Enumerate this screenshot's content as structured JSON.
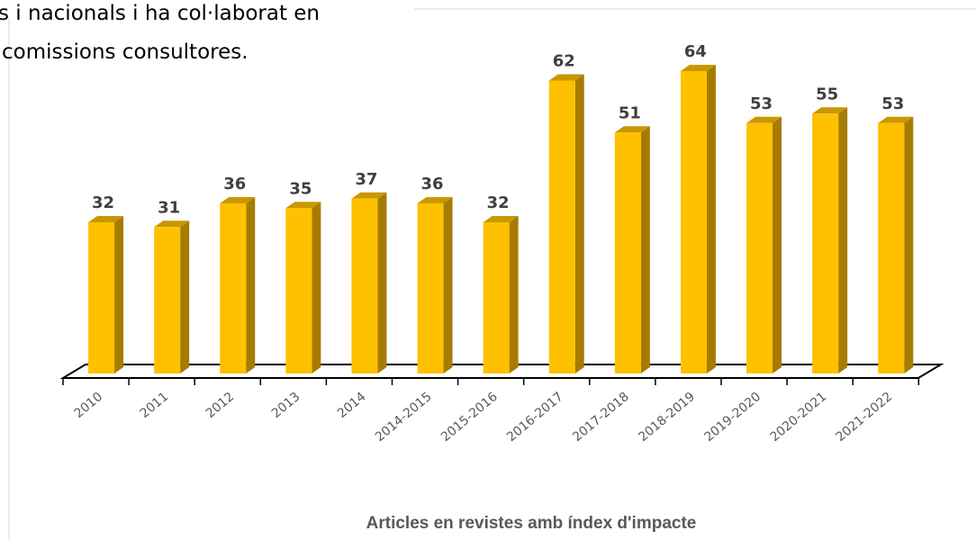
{
  "text_lines": [
    "s i nacionals i ha col·laborat en",
    "comissions consultores."
  ],
  "chart_data": {
    "type": "bar3d",
    "title": "Articles en revistes amb índex d'impacte",
    "categories": [
      "2010",
      "2011",
      "2012",
      "2013",
      "2014",
      "2014-2015",
      "2015-2016",
      "2016-2017",
      "2017-2018",
      "2018-2019",
      "2019-2020",
      "2020-2021",
      "2021-2022"
    ],
    "values": [
      32,
      31,
      36,
      35,
      37,
      36,
      32,
      62,
      51,
      64,
      53,
      55,
      53
    ],
    "color": "#ffc000",
    "ylim": [
      0,
      70
    ]
  }
}
